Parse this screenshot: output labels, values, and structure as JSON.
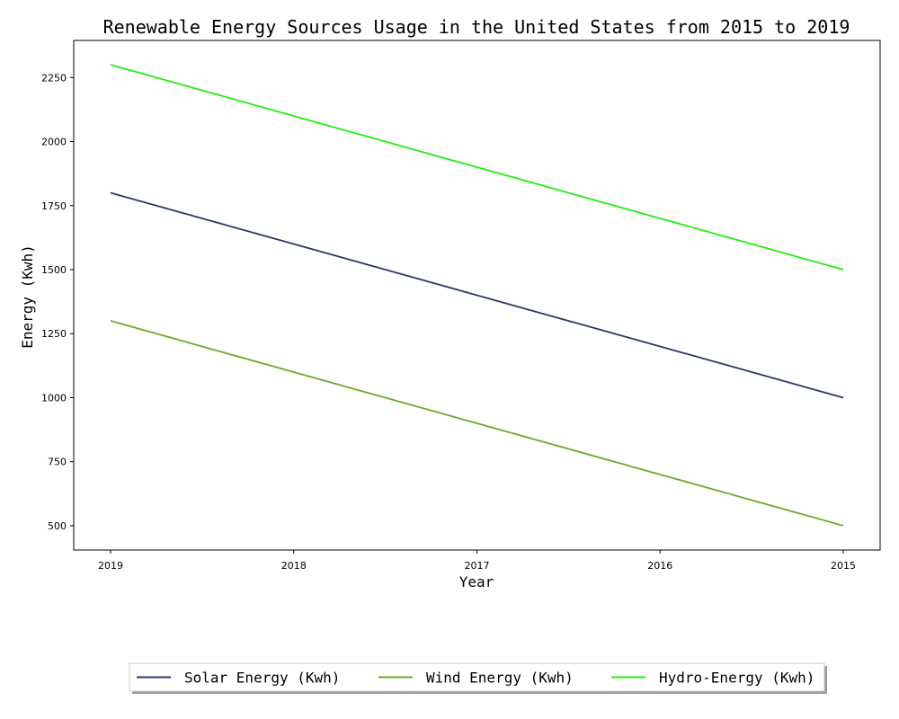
{
  "chart_data": {
    "type": "line",
    "title": "Renewable Energy Sources Usage in the United States from 2015 to 2019",
    "xlabel": "Year",
    "ylabel": "Energy (Kwh)",
    "categories": [
      "2019",
      "2018",
      "2017",
      "2016",
      "2015"
    ],
    "yticks": [
      500,
      750,
      1000,
      1250,
      1500,
      1750,
      2000,
      2250
    ],
    "ylim": [
      405,
      2395
    ],
    "grid": false,
    "legend_position": "bottom-center",
    "series": [
      {
        "name": "Solar Energy (Kwh)",
        "color": "#2b3a67",
        "values": [
          1800,
          1600,
          1400,
          1200,
          1000
        ]
      },
      {
        "name": "Wind Energy (Kwh)",
        "color": "#6aaa2a",
        "values": [
          1300,
          1100,
          900,
          700,
          500
        ]
      },
      {
        "name": "Hydro-Energy (Kwh)",
        "color": "#22ee11",
        "values": [
          2300,
          2100,
          1900,
          1700,
          1500
        ]
      }
    ]
  }
}
